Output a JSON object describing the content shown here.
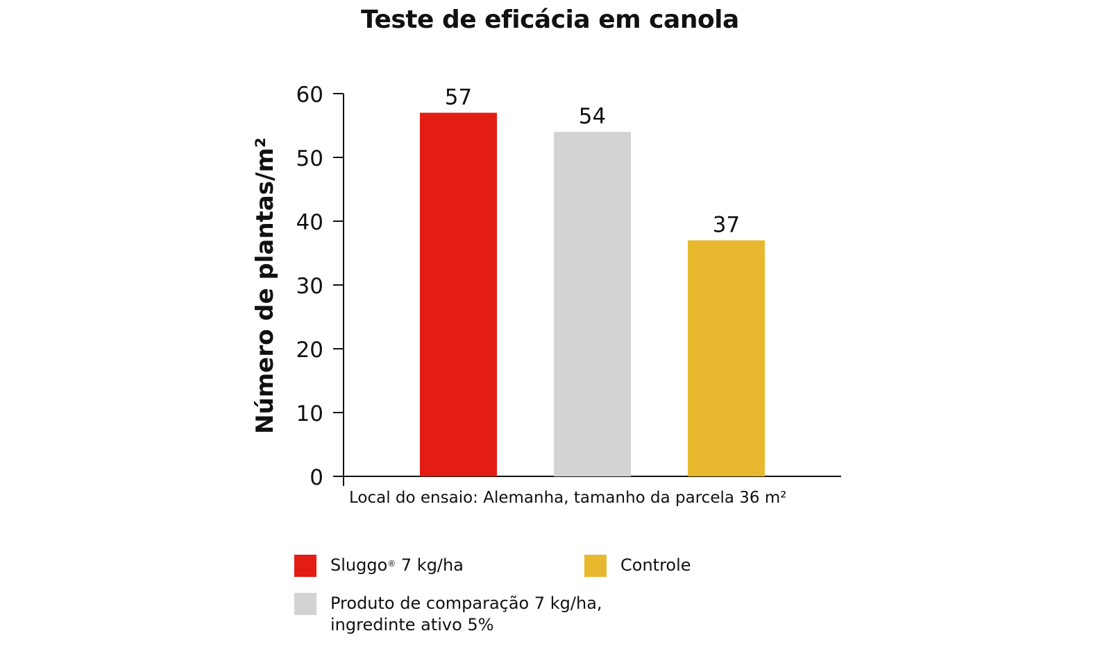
{
  "chart_data": {
    "type": "bar",
    "title": "Teste de eficácia em canola",
    "ylabel": "Número de plantas/m²",
    "xlabel": "",
    "ylim": [
      0,
      60
    ],
    "yticks": [
      0,
      10,
      20,
      30,
      40,
      50,
      60
    ],
    "note": "Local do ensaio: Alemanha, tamanho da parcela 36 m²",
    "bars": [
      {
        "legend": "Sluggo® 7 kg/ha",
        "value": 57,
        "color": "#e31c14"
      },
      {
        "legend": "Produto de comparação 7 kg/ha, ingredinte ativo 5%",
        "value": 54,
        "color": "#d3d3d3"
      },
      {
        "legend": "Controle",
        "value": 37,
        "color": "#e8b92f"
      }
    ],
    "value_labels": [
      "57",
      "54",
      "37"
    ],
    "grid": false,
    "legend_placement": "bottom"
  },
  "legend": {
    "sluggo": {
      "name": "Sluggo",
      "mark": "®",
      "rest": " 7 kg/ha",
      "color": "#e31c14"
    },
    "produto": {
      "line1": "Produto de comparação 7 kg/ha,",
      "line2": "ingredinte ativo 5%",
      "color": "#d3d3d3"
    },
    "controle": {
      "label": "Controle",
      "color": "#e8b92f"
    }
  }
}
